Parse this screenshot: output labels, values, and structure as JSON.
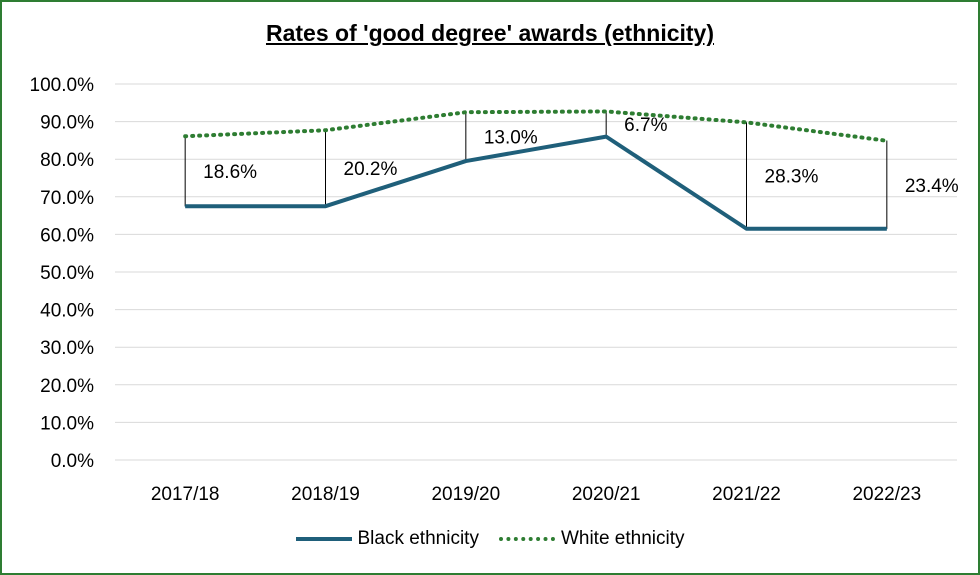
{
  "chart_data": {
    "type": "line",
    "title": "Rates of 'good degree' awards (ethnicity)",
    "categories": [
      "2017/18",
      "2018/19",
      "2019/20",
      "2020/21",
      "2021/22",
      "2022/23"
    ],
    "series": [
      {
        "name": "Black ethnicity",
        "values": [
          67.5,
          67.5,
          79.5,
          86.0,
          61.5,
          61.5
        ],
        "color": "#1f5f7a",
        "style": "solid"
      },
      {
        "name": "White ethnicity",
        "values": [
          86.1,
          87.7,
          92.5,
          92.7,
          89.8,
          84.9
        ],
        "color": "#2e7d32",
        "style": "dotted"
      }
    ],
    "gap_labels": [
      "18.6%",
      "20.2%",
      "13.0%",
      "6.7%",
      "28.3%",
      "23.4%"
    ],
    "yticks": [
      "0.0%",
      "10.0%",
      "20.0%",
      "30.0%",
      "40.0%",
      "50.0%",
      "60.0%",
      "70.0%",
      "80.0%",
      "90.0%",
      "100.0%"
    ],
    "ylim": [
      0,
      100
    ],
    "grid": true,
    "legend_position": "bottom"
  }
}
